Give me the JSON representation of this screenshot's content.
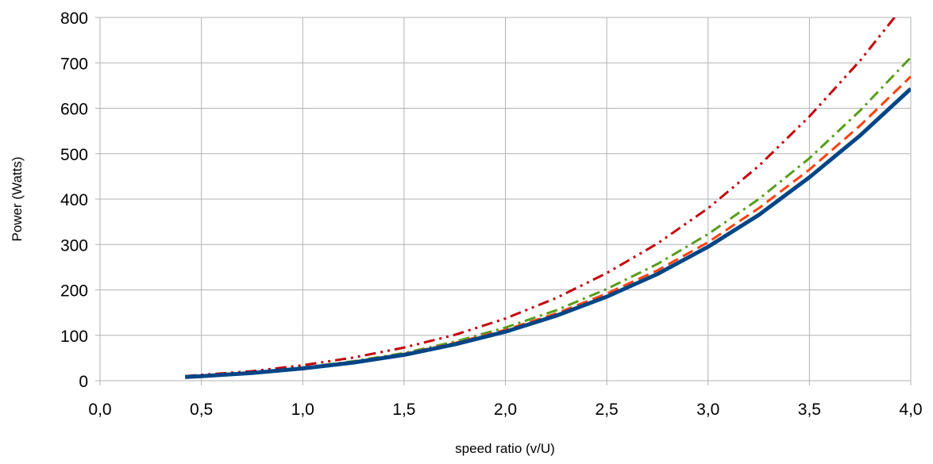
{
  "chart_data": {
    "type": "line",
    "title": "",
    "xlabel": "speed ratio (v/U)",
    "ylabel": "Power (Watts)",
    "xlim": [
      0,
      4
    ],
    "ylim": [
      0,
      800
    ],
    "grid": true,
    "x_tick_labels": [
      "0,0",
      "0,5",
      "1,0",
      "1,5",
      "2,0",
      "2,5",
      "3,0",
      "3,5",
      "4,0"
    ],
    "y_tick_labels": [
      "0",
      "100",
      "200",
      "300",
      "400",
      "500",
      "600",
      "700",
      "800"
    ],
    "x": [
      0.42,
      0.5,
      0.75,
      1.0,
      1.25,
      1.5,
      1.75,
      2.0,
      2.25,
      2.5,
      2.75,
      3.0,
      3.25,
      3.5,
      3.75,
      4.0
    ],
    "series": [
      {
        "color": "#004586",
        "style": "solid",
        "values": [
          8,
          10,
          17,
          27,
          40,
          57,
          80,
          108,
          143,
          185,
          235,
          295,
          365,
          448,
          540,
          643
        ]
      },
      {
        "color": "#ff420e",
        "style": "dash",
        "values": [
          9,
          11,
          18,
          28,
          42,
          59,
          83,
          112,
          148,
          192,
          243,
          305,
          380,
          465,
          562,
          670
        ]
      },
      {
        "color": "#579d1c",
        "style": "dashdot",
        "values": [
          9,
          11,
          18,
          29,
          43,
          61,
          86,
          117,
          155,
          202,
          257,
          323,
          400,
          490,
          595,
          712
        ]
      },
      {
        "color": "#c5000b",
        "style": "dashdotdot",
        "values": [
          10,
          13,
          21,
          34,
          51,
          73,
          101,
          137,
          182,
          237,
          302,
          380,
          473,
          582,
          705,
          845
        ]
      }
    ]
  },
  "colors": {
    "grid": "#b3b3b3",
    "axis": "#b3b3b3"
  }
}
